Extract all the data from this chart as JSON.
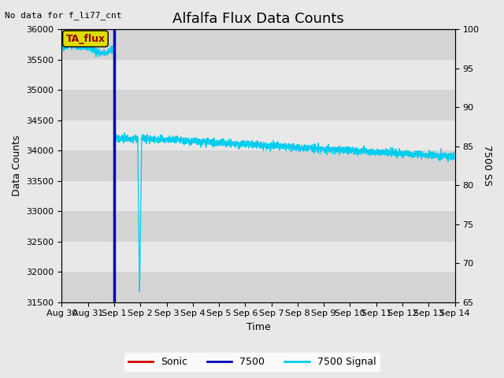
{
  "title": "Alfalfa Flux Data Counts",
  "no_data_label": "No data for f_li77_cnt",
  "ta_flux_label": "TA_flux",
  "ylabel_left": "Data Counts",
  "ylabel_right": "7500 SS",
  "xlabel": "Time",
  "ylim_left": [
    31500,
    36000
  ],
  "ylim_right": [
    65,
    100
  ],
  "yticks_left": [
    31500,
    32000,
    32500,
    33000,
    33500,
    34000,
    34500,
    35000,
    35500,
    36000
  ],
  "yticks_right": [
    65,
    70,
    75,
    80,
    85,
    90,
    95,
    100
  ],
  "fig_bg_color": "#e8e8e8",
  "plot_bg_color": "#d4d4d4",
  "grid_color": "#e8e8e8",
  "sonic_color": "#cc0000",
  "s7500_color": "#0000bb",
  "signal_color": "#00ccee",
  "ta_flux_box_color": "#dddd00",
  "ta_flux_text_color": "#990000",
  "legend_labels": [
    "Sonic",
    "7500",
    "7500 Signal"
  ],
  "legend_colors": [
    "#cc0000",
    "#0000bb",
    "#00ccee"
  ],
  "title_fontsize": 13,
  "label_fontsize": 9,
  "tick_fontsize": 8
}
